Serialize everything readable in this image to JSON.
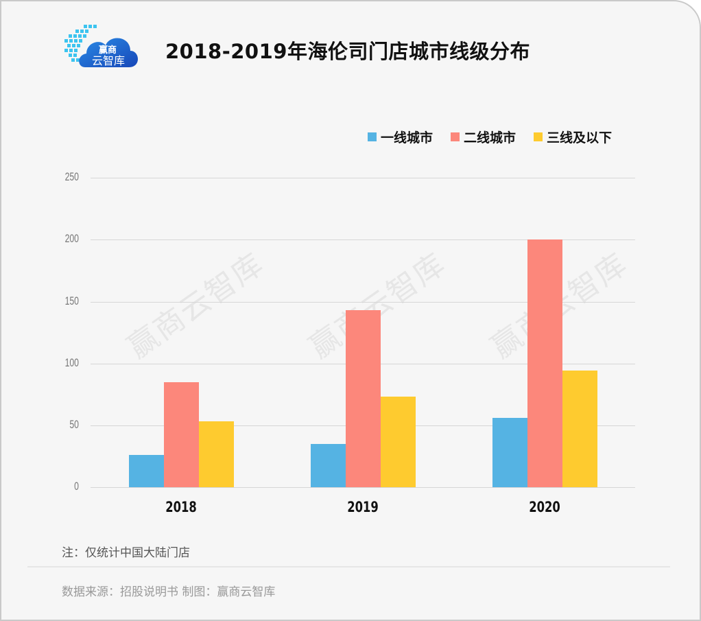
{
  "header": {
    "logo_text_top": "赢商",
    "logo_text_bottom": "云智库",
    "title": "2018-2019年海伦司门店城市线级分布"
  },
  "legend": [
    {
      "label": "一线城市",
      "color": "#55b3e3"
    },
    {
      "label": "二线城市",
      "color": "#fc877b"
    },
    {
      "label": "三线及以下",
      "color": "#fecb2f"
    }
  ],
  "y_axis": {
    "ticks": [
      "250",
      "200",
      "150",
      "100",
      "50",
      "0"
    ]
  },
  "x_axis": {
    "ticks": [
      "2018",
      "2019",
      "2020"
    ]
  },
  "watermark": "赢商云智库",
  "footer": {
    "note": "注：仅统计中国大陆门店",
    "source": "数据来源：招股说明书  制图：赢商云智库"
  },
  "chart_data": {
    "type": "bar",
    "title": "2018-2019年海伦司门店城市线级分布",
    "categories": [
      "2018",
      "2019",
      "2020"
    ],
    "series": [
      {
        "name": "一线城市",
        "color": "#55b3e3",
        "values": [
          26,
          35,
          56
        ]
      },
      {
        "name": "二线城市",
        "color": "#fc877b",
        "values": [
          85,
          143,
          200
        ]
      },
      {
        "name": "三线及以下",
        "color": "#fecb2f",
        "values": [
          53,
          73,
          94
        ]
      }
    ],
    "xlabel": "",
    "ylabel": "",
    "ylim": [
      0,
      250
    ],
    "yticks": [
      0,
      50,
      100,
      150,
      200,
      250
    ],
    "grid": true,
    "legend_position": "top-right",
    "annotations": [
      "注：仅统计中国大陆门店"
    ]
  }
}
